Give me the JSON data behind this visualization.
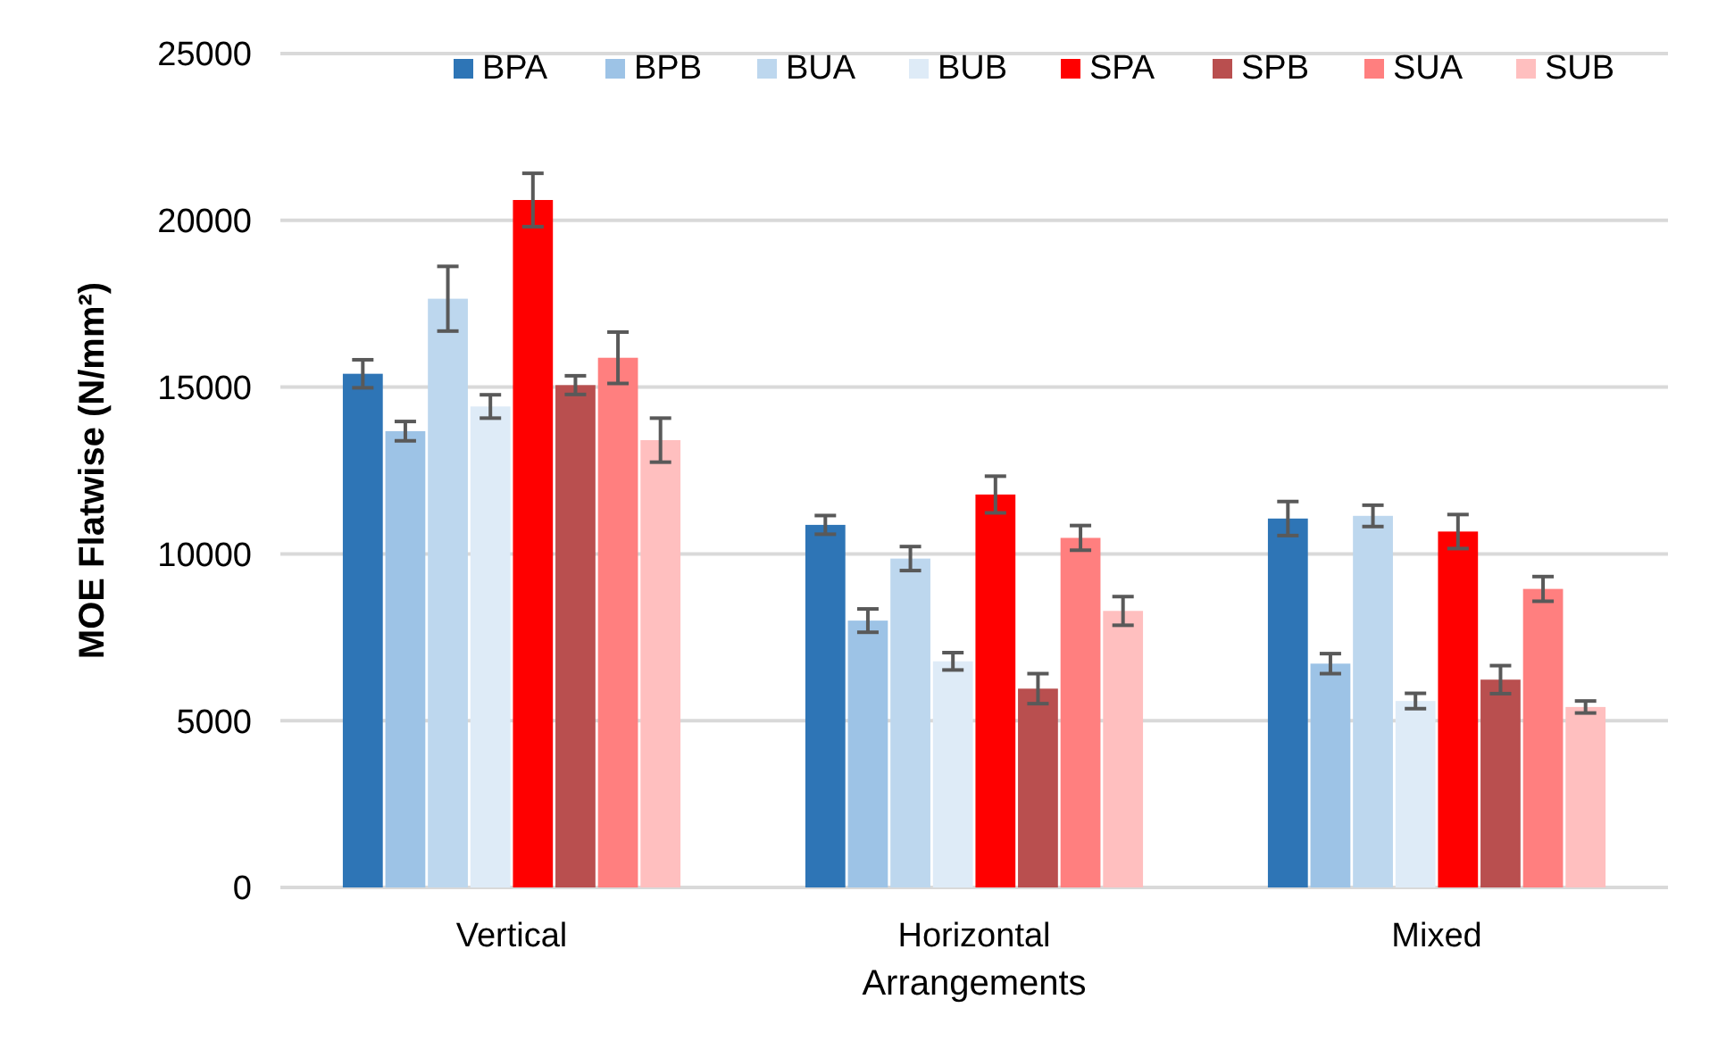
{
  "chart_data": {
    "type": "bar",
    "xlabel": "Arrangements",
    "ylabel": "MOE Flatwise (N/mm²)",
    "categories": [
      "Vertical",
      "Horizontal",
      "Mixed"
    ],
    "series": [
      {
        "name": "BPA",
        "color": "#2e75b6",
        "values": [
          15400,
          10870,
          11060
        ],
        "errors": [
          420,
          280,
          510
        ]
      },
      {
        "name": "BPB",
        "color": "#9dc3e6",
        "values": [
          13680,
          8000,
          6710
        ],
        "errors": [
          290,
          350,
          300
        ]
      },
      {
        "name": "BUA",
        "color": "#bdd7ee",
        "values": [
          17650,
          9860,
          11140
        ],
        "errors": [
          970,
          360,
          320
        ]
      },
      {
        "name": "BUB",
        "color": "#deebf7",
        "values": [
          14420,
          6780,
          5590
        ],
        "errors": [
          350,
          260,
          230
        ]
      },
      {
        "name": "SPA",
        "color": "#ff0000",
        "values": [
          20610,
          11780,
          10670
        ],
        "errors": [
          800,
          550,
          510
        ]
      },
      {
        "name": "SPB",
        "color": "#b94f4f",
        "values": [
          15060,
          5960,
          6230
        ],
        "errors": [
          280,
          450,
          420
        ]
      },
      {
        "name": "SUA",
        "color": "#ff7f7f",
        "values": [
          15880,
          10480,
          8950
        ],
        "errors": [
          770,
          370,
          370
        ]
      },
      {
        "name": "SUB",
        "color": "#ffbfbf",
        "values": [
          13410,
          8290,
          5410
        ],
        "errors": [
          660,
          430,
          180
        ]
      }
    ],
    "ylim": [
      0,
      25000
    ],
    "yticks": [
      0,
      5000,
      10000,
      15000,
      20000,
      25000
    ],
    "grid": "y",
    "legend": "top right"
  }
}
